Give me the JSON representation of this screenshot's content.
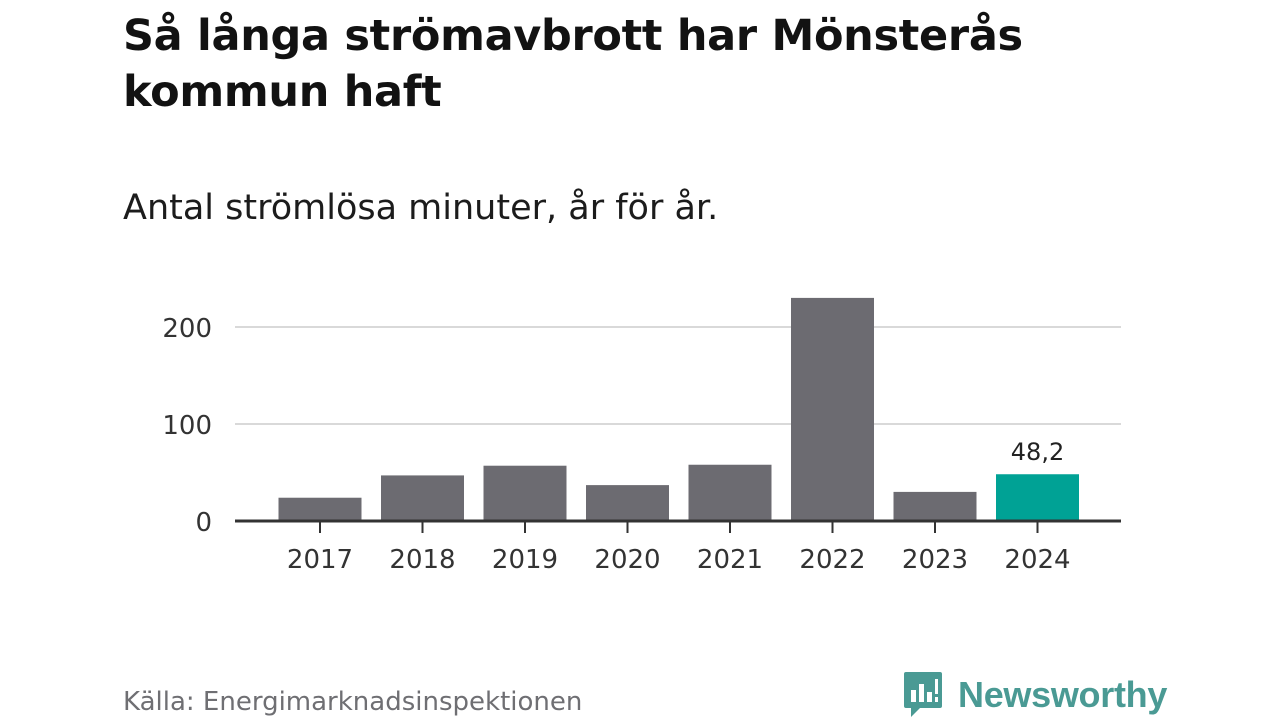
{
  "title": "Så långa strömavbrott har Mönsterås kommun haft",
  "subtitle": "Antal strömlösa minuter, år för år.",
  "source": "Källa: Energimarknadsinspektionen",
  "brand": {
    "name": "Newsworthy",
    "icon": "newsworthy-logo-icon",
    "color": "#4a9a94"
  },
  "colors": {
    "bar": "#6c6b71",
    "highlight": "#00a295",
    "grid": "#d9d9d9",
    "axis": "#333333"
  },
  "chart_data": {
    "type": "bar",
    "title": "Så långa strömavbrott har Mönsterås kommun haft",
    "subtitle": "Antal strömlösa minuter, år för år.",
    "xlabel": "",
    "ylabel": "",
    "categories": [
      "2017",
      "2018",
      "2019",
      "2020",
      "2021",
      "2022",
      "2023",
      "2024"
    ],
    "values": [
      24,
      47,
      57,
      37,
      58,
      230,
      30,
      48.2
    ],
    "highlight_index": 7,
    "data_labels": [
      {
        "index": 7,
        "text": "48,2"
      }
    ],
    "yticks": [
      0,
      100,
      200
    ],
    "ylim": [
      0,
      230
    ],
    "grid": true,
    "legend": "none"
  }
}
